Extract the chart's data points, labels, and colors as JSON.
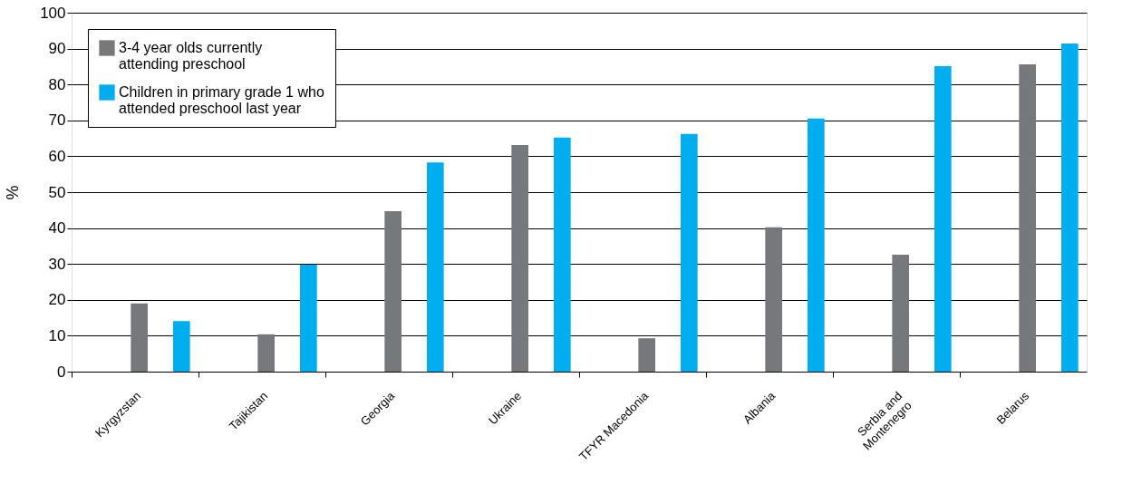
{
  "chart_data": {
    "type": "bar",
    "ylabel": "%",
    "categories": [
      "Kyrgyzstan",
      "Tajikistan",
      "Georgia",
      "Ukraine",
      "TFYR Macedonia",
      "Albania",
      "Serbia and\nMontenegro",
      "Belarus"
    ],
    "series": [
      {
        "name": "3-4 year olds currently\nattending preschool",
        "color": "#77787b",
        "values": [
          19,
          10.4,
          44.7,
          63.1,
          9.3,
          40.2,
          32.6,
          85.6
        ]
      },
      {
        "name": "Children in primary grade 1 who\nattended preschool last year",
        "color": "#00aeef",
        "values": [
          14.1,
          29.8,
          58.3,
          65.2,
          66.2,
          70.5,
          85.1,
          91.4
        ]
      }
    ],
    "ylim": [
      0,
      100
    ],
    "yticks": [
      0,
      10,
      20,
      30,
      40,
      50,
      60,
      70,
      80,
      90,
      100
    ],
    "grid": "y",
    "legend": "top left"
  }
}
